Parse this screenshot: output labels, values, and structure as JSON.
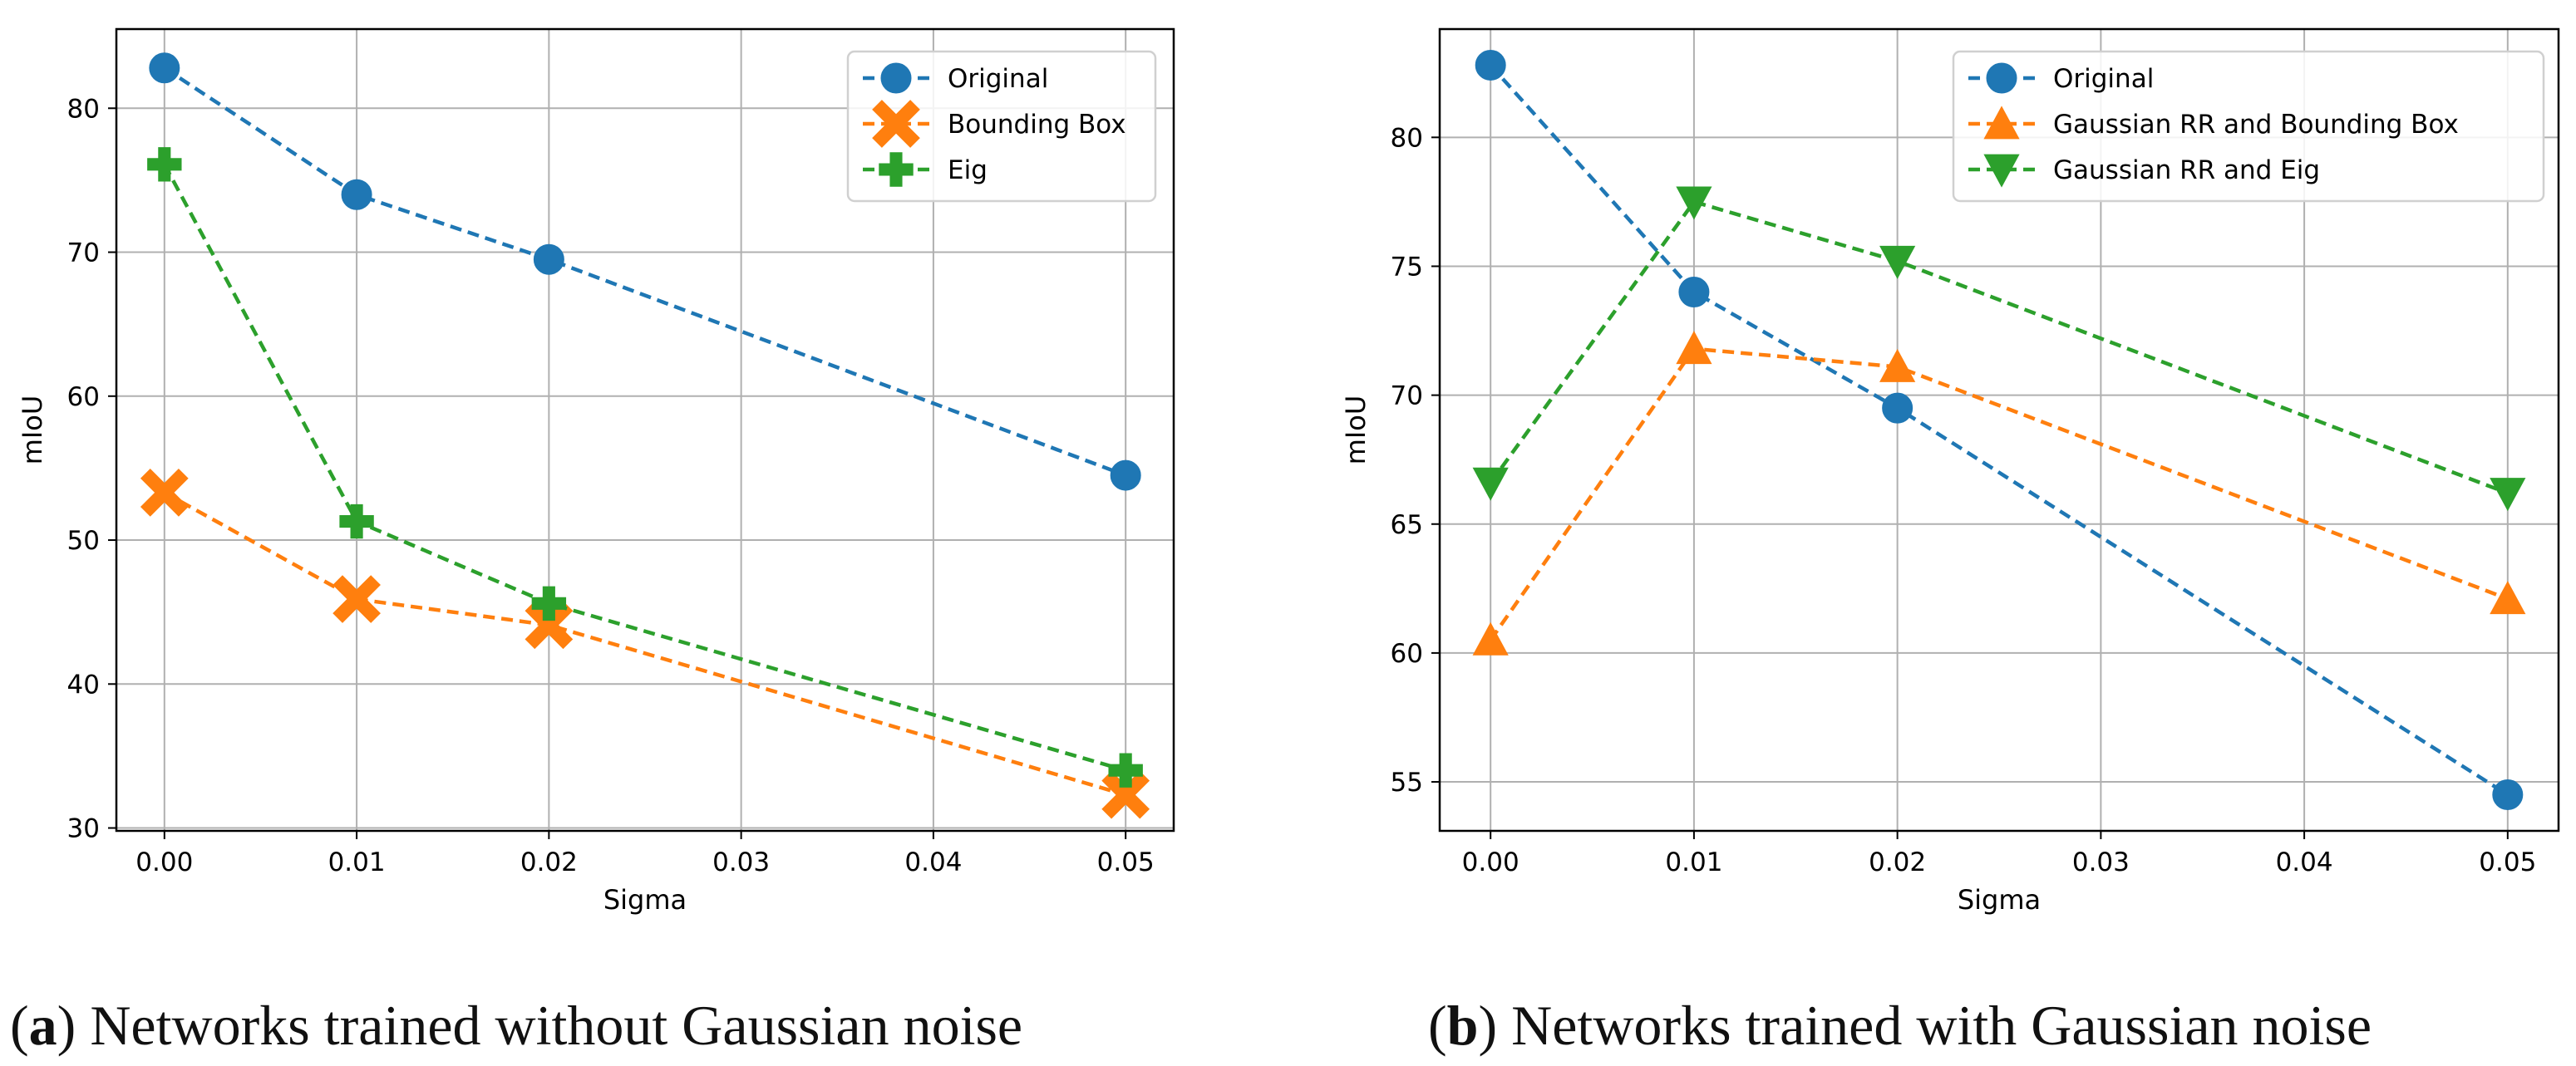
{
  "chart_data": [
    {
      "type": "line",
      "title": "",
      "xlabel": "Sigma",
      "ylabel": "mIoU",
      "xlim": [
        -0.0025,
        0.0525
      ],
      "ylim": [
        29.8,
        85.5
      ],
      "xticks": [
        0.0,
        0.01,
        0.02,
        0.03,
        0.04,
        0.05
      ],
      "xtick_labels": [
        "0.00",
        "0.01",
        "0.02",
        "0.03",
        "0.04",
        "0.05"
      ],
      "yticks": [
        30,
        40,
        50,
        60,
        70,
        80
      ],
      "ytick_labels": [
        "30",
        "40",
        "50",
        "60",
        "70",
        "80"
      ],
      "grid": true,
      "legend_position": "top-right",
      "x": [
        0.0,
        0.01,
        0.02,
        0.05
      ],
      "series": [
        {
          "name": "Original",
          "marker": "circle",
          "color": "#1f77b4",
          "values": [
            82.8,
            74.0,
            69.5,
            54.5
          ]
        },
        {
          "name": "Bounding Box",
          "marker": "x-cross",
          "color": "#ff7f0e",
          "values": [
            53.3,
            45.9,
            44.1,
            32.3
          ]
        },
        {
          "name": "Eig",
          "marker": "plus",
          "color": "#2ca02c",
          "values": [
            76.1,
            51.3,
            45.6,
            34.0
          ]
        }
      ],
      "caption": {
        "label": "a",
        "text": " Networks trained without Gaussian noise"
      }
    },
    {
      "type": "line",
      "title": "",
      "xlabel": "Sigma",
      "ylabel": "mIoU",
      "xlim": [
        -0.0025,
        0.0525
      ],
      "ylim": [
        53.1,
        84.2
      ],
      "xticks": [
        0.0,
        0.01,
        0.02,
        0.03,
        0.04,
        0.05
      ],
      "xtick_labels": [
        "0.00",
        "0.01",
        "0.02",
        "0.03",
        "0.04",
        "0.05"
      ],
      "yticks": [
        55,
        60,
        65,
        70,
        75,
        80
      ],
      "ytick_labels": [
        "55",
        "60",
        "65",
        "70",
        "75",
        "80"
      ],
      "grid": true,
      "legend_position": "top-right",
      "x": [
        0.0,
        0.01,
        0.02,
        0.05
      ],
      "series": [
        {
          "name": "Original",
          "marker": "circle",
          "color": "#1f77b4",
          "values": [
            82.8,
            74.0,
            69.5,
            54.5
          ]
        },
        {
          "name": "Gaussian RR and Bounding Box",
          "marker": "triangle-up",
          "color": "#ff7f0e",
          "values": [
            60.5,
            71.8,
            71.1,
            62.1
          ]
        },
        {
          "name": "Gaussian RR and Eig",
          "marker": "triangle-down",
          "color": "#2ca02c",
          "values": [
            66.6,
            77.5,
            75.2,
            66.2
          ]
        }
      ],
      "caption": {
        "label": "b",
        "text": " Networks trained with Gaussian noise"
      }
    }
  ]
}
